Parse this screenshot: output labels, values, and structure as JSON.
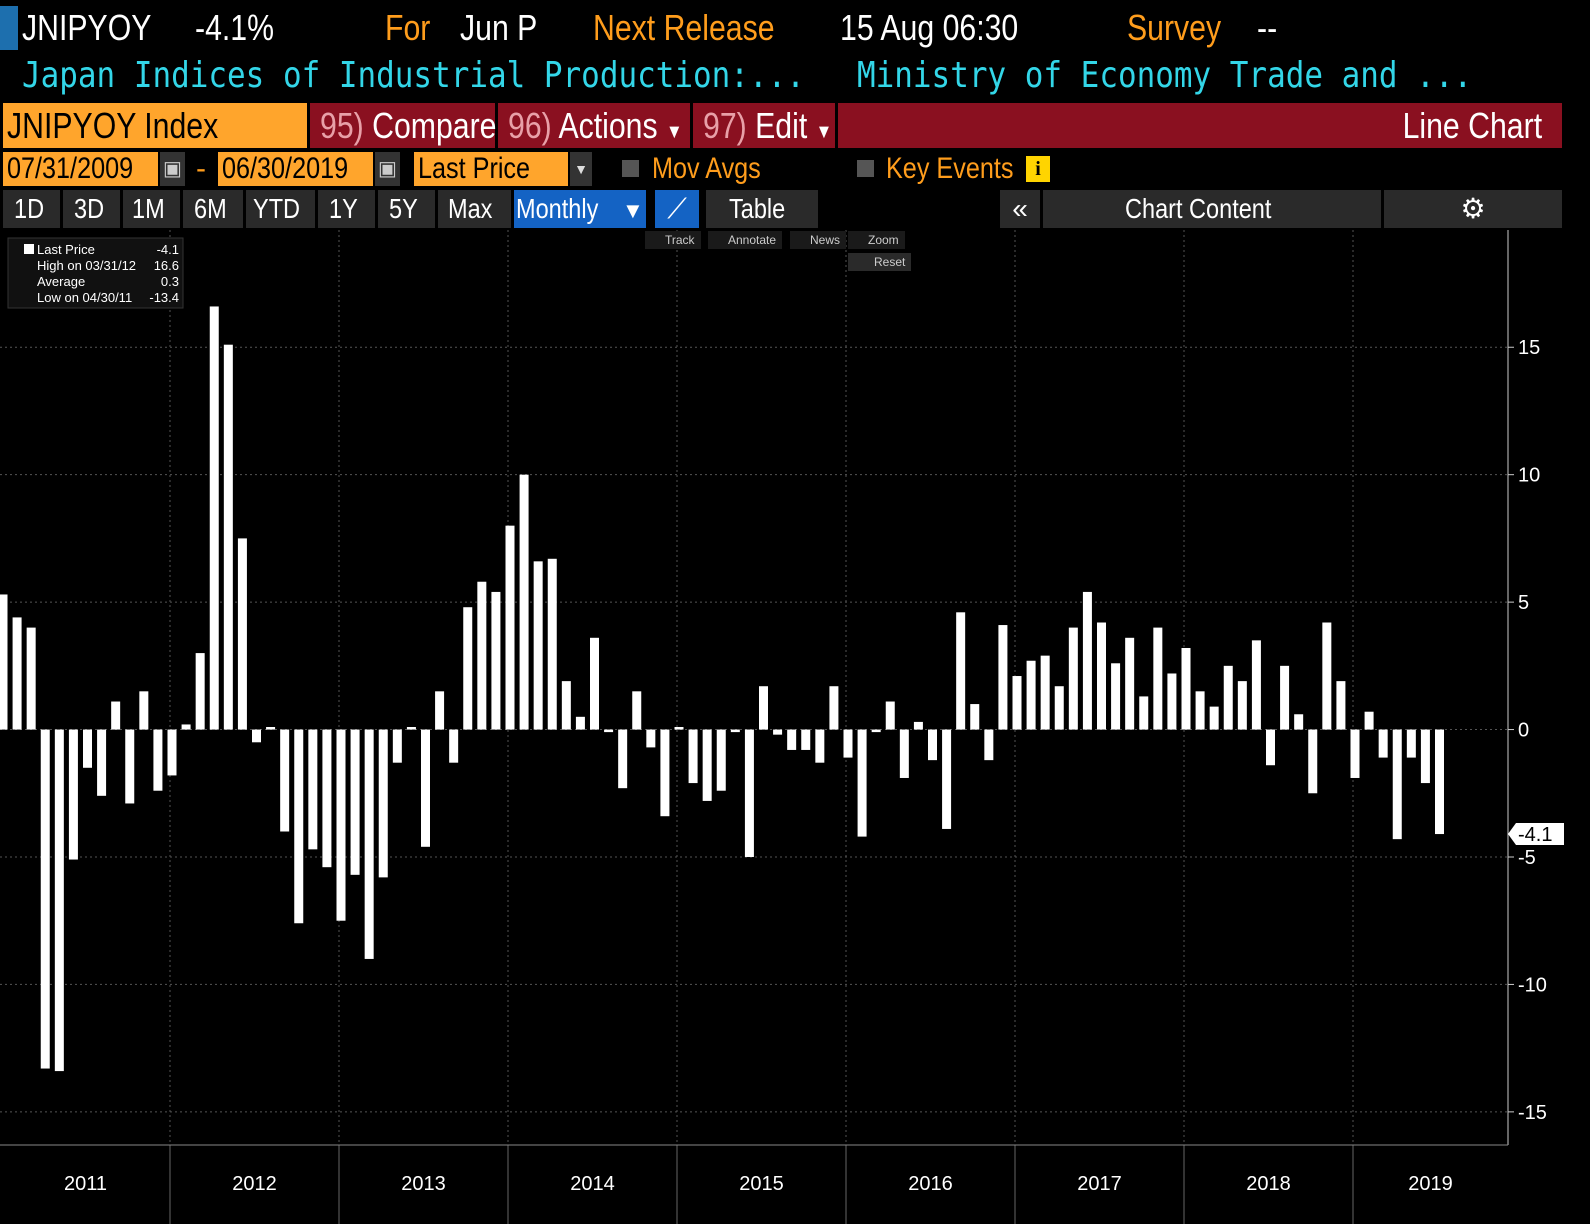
{
  "header": {
    "ticker": "JNIPYOY",
    "change": "-4.1%",
    "for_label": "For",
    "period": "Jun P",
    "next_release_label": "Next Release",
    "next_release": "15 Aug 06:30",
    "survey_label": "Survey",
    "survey": "--",
    "description": "Japan Indices of Industrial Production:...",
    "source": "Ministry of Economy Trade and ..."
  },
  "toolbar": {
    "security": "JNIPYOY Index",
    "menu": [
      {
        "num": "95)",
        "label": "Compare"
      },
      {
        "num": "96)",
        "label": "Actions"
      },
      {
        "num": "97)",
        "label": "Edit"
      }
    ],
    "chart_kind": "Line Chart",
    "start_date": "07/31/2009",
    "date_sep": "-",
    "end_date": "06/30/2019",
    "field": "Last Price",
    "mov_avgs": "Mov Avgs",
    "key_events": "Key Events",
    "periods": [
      "1D",
      "3D",
      "1M",
      "6M",
      "YTD",
      "1Y",
      "5Y",
      "Max"
    ],
    "frequency": "Monthly",
    "table": "Table",
    "chart_content": "Chart Content",
    "tools": [
      "Track",
      "Annotate",
      "News",
      "Zoom"
    ],
    "reset": "Reset"
  },
  "chart_data": {
    "type": "bar",
    "color": "#ffffff",
    "legend": [
      {
        "label": "Last Price",
        "value": "-4.1"
      },
      {
        "label": "High on 03/31/12",
        "value": "16.6"
      },
      {
        "label": "Average",
        "value": "0.3"
      },
      {
        "label": "Low on 04/30/11",
        "value": "-13.4"
      }
    ],
    "values": [
      5.3,
      4.4,
      4.0,
      -13.3,
      -13.4,
      -5.1,
      -1.5,
      -2.6,
      1.1,
      -2.9,
      1.5,
      -2.4,
      -1.8,
      0.2,
      3.0,
      16.6,
      15.1,
      7.5,
      -0.5,
      0.1,
      -4.0,
      -7.6,
      -4.7,
      -5.4,
      -7.5,
      -5.7,
      -9.0,
      -5.8,
      -1.3,
      0.1,
      -4.6,
      1.5,
      -1.3,
      4.8,
      5.8,
      5.4,
      8.0,
      10.0,
      6.6,
      6.7,
      1.9,
      0.5,
      3.6,
      -0.1,
      -2.3,
      1.5,
      -0.7,
      -3.4,
      0.1,
      -2.1,
      -2.8,
      -2.4,
      -0.1,
      -5.0,
      1.7,
      -0.2,
      -0.8,
      -0.8,
      -1.3,
      1.7,
      -1.1,
      -4.2,
      -0.1,
      1.1,
      -1.9,
      0.3,
      -1.2,
      -3.9,
      4.6,
      1.0,
      -1.2,
      4.1,
      2.1,
      2.7,
      2.9,
      1.7,
      4.0,
      5.4,
      4.2,
      2.6,
      3.6,
      1.3,
      4.0,
      2.2,
      3.2,
      1.5,
      0.9,
      2.5,
      1.9,
      3.5,
      -1.4,
      2.5,
      0.6,
      -2.5,
      4.2,
      1.9,
      -1.9,
      0.7,
      -1.1,
      -4.3,
      -1.1,
      -2.1,
      -4.1
    ],
    "ylim": [
      -16.3,
      19.6
    ],
    "yticks": [
      -15,
      -10,
      -5,
      0,
      5,
      10,
      15
    ],
    "grid": true,
    "year_labels": [
      "2011",
      "2012",
      "2013",
      "2014",
      "2015",
      "2016",
      "2017",
      "2018",
      "2019"
    ],
    "last_label": "-4.1"
  }
}
